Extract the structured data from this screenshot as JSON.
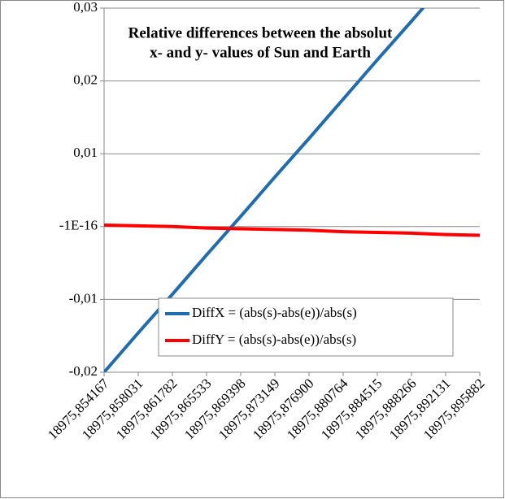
{
  "chart_data": {
    "type": "line",
    "title": [
      "Relative differences between the absolut",
      "x- and y- values of Sun and Earth"
    ],
    "categories": [
      "18975,854167",
      "18975,858031",
      "18975,861782",
      "18975,865533",
      "18975,869398",
      "18975,873149",
      "18975,876900",
      "18975,880764",
      "18975,884515",
      "18975,888266",
      "18975,892131",
      "18975,895882"
    ],
    "series": [
      {
        "name": "DiffX = (abs(s)-abs(e))/abs(s)",
        "color": "#1f6cb0",
        "values": [
          -0.02,
          -0.0146,
          -0.0093,
          -0.0039,
          0.0014,
          0.0068,
          0.0121,
          0.0175,
          0.0229,
          0.0282,
          0.0336,
          0.0389
        ]
      },
      {
        "name": "DiffY = (abs(s)-abs(e))/abs(s)",
        "color": "#ff0000",
        "values": [
          0.0002,
          0.0001,
          0,
          -0.0002,
          -0.0003,
          -0.0004,
          -0.0005,
          -0.0007,
          -0.0008,
          -0.0009,
          -0.0011,
          -0.0012
        ]
      }
    ],
    "ylim": [
      -0.02,
      0.03
    ],
    "yticks": [
      {
        "value": -0.02,
        "label": "-0,02"
      },
      {
        "value": -0.01,
        "label": "-0,01"
      },
      {
        "value": -1e-16,
        "label": "-1E-16"
      },
      {
        "value": 0.01,
        "label": "0,01"
      },
      {
        "value": 0.02,
        "label": "0,02"
      },
      {
        "value": 0.03,
        "label": "0,03"
      }
    ],
    "grid": true,
    "legend": "lower-right"
  }
}
